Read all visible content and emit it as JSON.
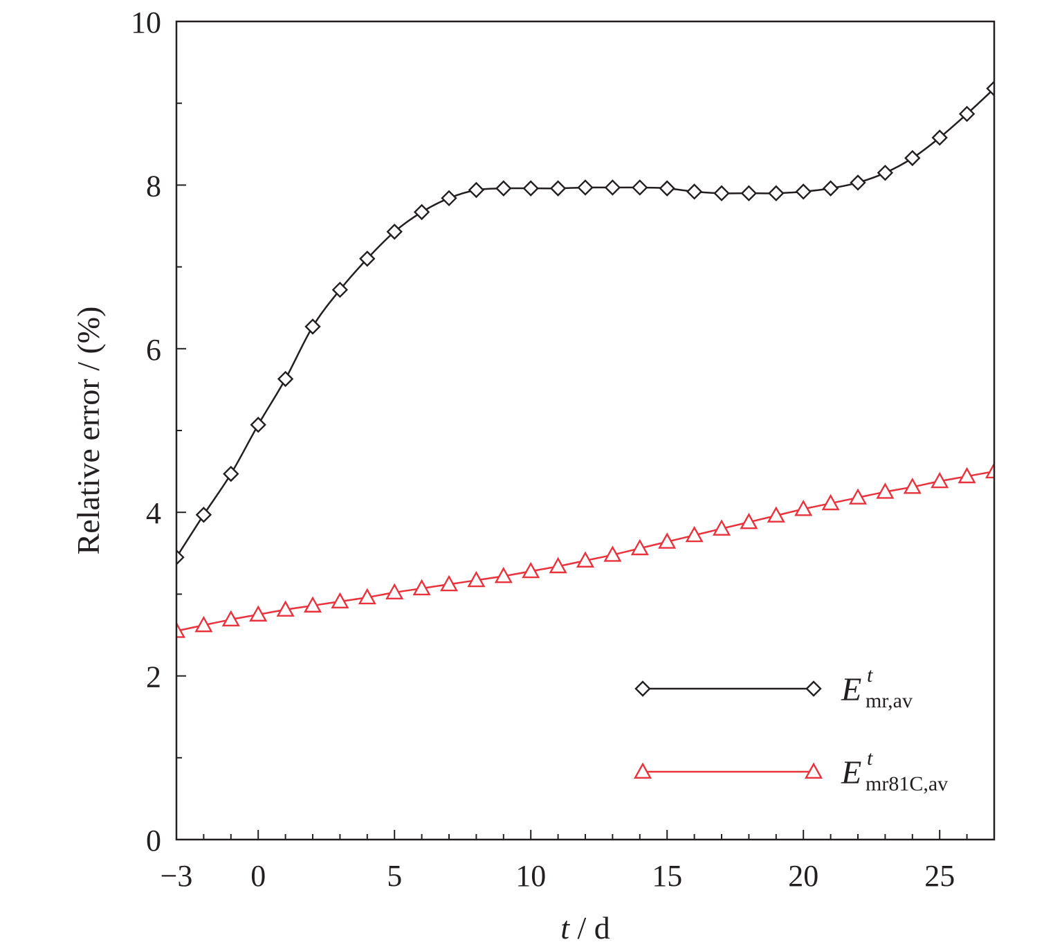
{
  "chart_data": {
    "type": "line",
    "title": "",
    "xlabel_var": "t",
    "xlabel_unit": " / d",
    "ylabel": "Relative error / (%)",
    "xlim": [
      -3,
      27
    ],
    "ylim": [
      0,
      10
    ],
    "xticks": [
      -3,
      0,
      5,
      10,
      15,
      20,
      25
    ],
    "xtick_labels": [
      "−3",
      "0",
      "5",
      "10",
      "15",
      "20",
      "25"
    ],
    "yticks": [
      0,
      2,
      4,
      6,
      8,
      10
    ],
    "ytick_labels": [
      "0",
      "2",
      "4",
      "6",
      "8",
      "10"
    ],
    "grid": false,
    "legend_position": "bottom-right",
    "x": [
      -3,
      -2,
      -1,
      0,
      1,
      2,
      3,
      4,
      5,
      6,
      7,
      8,
      9,
      10,
      11,
      12,
      13,
      14,
      15,
      16,
      17,
      18,
      19,
      20,
      21,
      22,
      23,
      24,
      25,
      26,
      27
    ],
    "series": [
      {
        "name": "E",
        "name_sup": "t",
        "name_sub": "mr,av",
        "color": "#231f20",
        "marker": "diamond",
        "values": [
          3.45,
          3.97,
          4.47,
          5.07,
          5.63,
          6.27,
          6.72,
          7.1,
          7.43,
          7.67,
          7.84,
          7.94,
          7.96,
          7.96,
          7.96,
          7.97,
          7.97,
          7.97,
          7.96,
          7.92,
          7.9,
          7.9,
          7.9,
          7.92,
          7.96,
          8.03,
          8.15,
          8.33,
          8.58,
          8.87,
          9.18
        ]
      },
      {
        "name": "E",
        "name_sup": "t",
        "name_sub": "mr81C,av",
        "color": "#e8323c",
        "marker": "triangle",
        "values": [
          2.55,
          2.62,
          2.69,
          2.75,
          2.81,
          2.86,
          2.91,
          2.96,
          3.02,
          3.07,
          3.12,
          3.17,
          3.22,
          3.28,
          3.34,
          3.41,
          3.48,
          3.56,
          3.64,
          3.72,
          3.8,
          3.88,
          3.96,
          4.04,
          4.11,
          4.18,
          4.25,
          4.31,
          4.38,
          4.44,
          4.5
        ]
      }
    ]
  }
}
